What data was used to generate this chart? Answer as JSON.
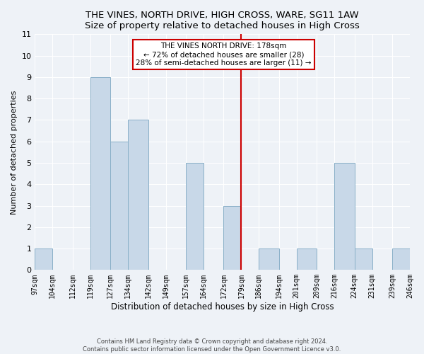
{
  "title": "THE VINES, NORTH DRIVE, HIGH CROSS, WARE, SG11 1AW",
  "subtitle": "Size of property relative to detached houses in High Cross",
  "xlabel": "Distribution of detached houses by size in High Cross",
  "ylabel": "Number of detached properties",
  "bin_edges": [
    97,
    104,
    112,
    119,
    127,
    134,
    142,
    149,
    157,
    164,
    172,
    179,
    186,
    194,
    201,
    209,
    216,
    224,
    231,
    239,
    246
  ],
  "bar_heights": [
    1,
    0,
    0,
    9,
    6,
    7,
    0,
    0,
    5,
    0,
    3,
    0,
    1,
    0,
    1,
    0,
    5,
    1,
    0,
    1
  ],
  "bar_color": "#c8d8e8",
  "bar_edgecolor": "#8ab0c8",
  "reference_line_x": 179,
  "reference_line_color": "#cc0000",
  "annotation_title": "THE VINES NORTH DRIVE: 178sqm",
  "annotation_line1": "← 72% of detached houses are smaller (28)",
  "annotation_line2": "28% of semi-detached houses are larger (11) →",
  "annotation_box_edgecolor": "#cc0000",
  "ylim": [
    0,
    11
  ],
  "yticks": [
    0,
    1,
    2,
    3,
    4,
    5,
    6,
    7,
    8,
    9,
    10,
    11
  ],
  "tick_labels": [
    "97sqm",
    "104sqm",
    "112sqm",
    "119sqm",
    "127sqm",
    "134sqm",
    "142sqm",
    "149sqm",
    "157sqm",
    "164sqm",
    "172sqm",
    "179sqm",
    "186sqm",
    "194sqm",
    "201sqm",
    "209sqm",
    "216sqm",
    "224sqm",
    "231sqm",
    "239sqm",
    "246sqm"
  ],
  "footnote1": "Contains HM Land Registry data © Crown copyright and database right 2024.",
  "footnote2": "Contains public sector information licensed under the Open Government Licence v3.0.",
  "background_color": "#eef2f7",
  "grid_color": "#ffffff"
}
